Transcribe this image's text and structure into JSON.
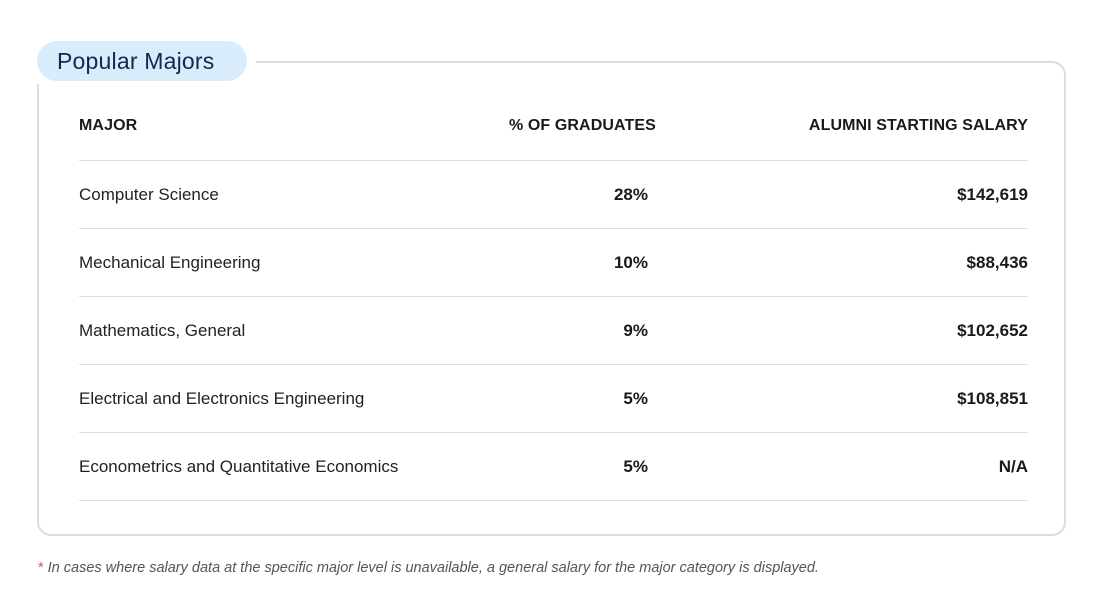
{
  "section": {
    "title": "Popular Majors"
  },
  "table": {
    "headers": {
      "major": "MAJOR",
      "percent": "% OF GRADUATES",
      "salary": "ALUMNI STARTING SALARY"
    },
    "rows": [
      {
        "major": "Computer Science",
        "percent": "28%",
        "salary": "$142,619"
      },
      {
        "major": "Mechanical Engineering",
        "percent": "10%",
        "salary": "$88,436"
      },
      {
        "major": "Mathematics, General",
        "percent": "9%",
        "salary": "$102,652"
      },
      {
        "major": "Electrical and Electronics Engineering",
        "percent": "5%",
        "salary": "$108,851"
      },
      {
        "major": "Econometrics and Quantitative Economics",
        "percent": "5%",
        "salary": "N/A"
      }
    ]
  },
  "footnote": {
    "marker": "*",
    "text": "In cases where salary data at the specific major level is unavailable, a general salary for the major category is displayed."
  },
  "colors": {
    "pill_background": "#d9ecfb",
    "title_text": "#0f2a4f",
    "card_border": "#dcdcdc",
    "footnote_marker": "#d9534f"
  }
}
